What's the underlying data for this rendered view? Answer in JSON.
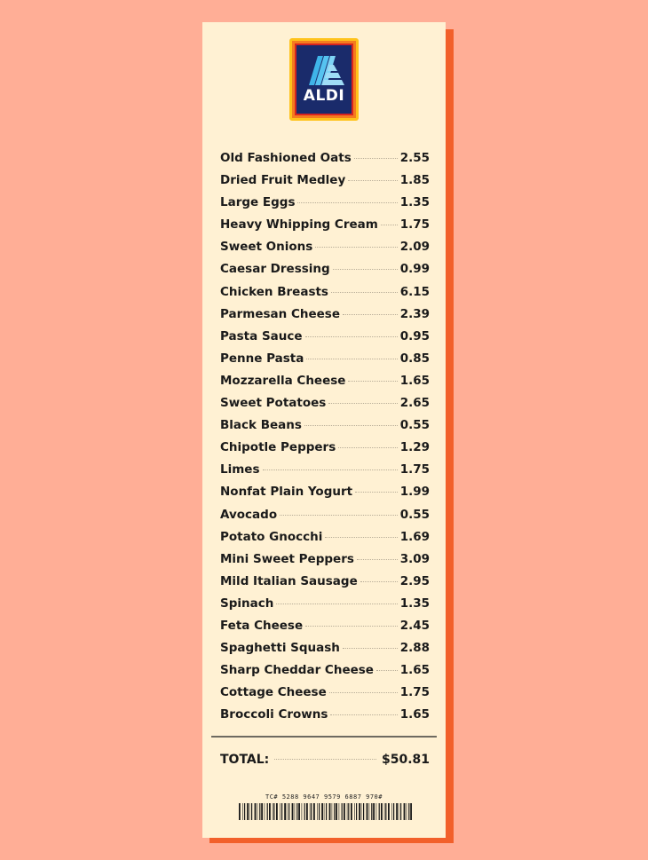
{
  "store": {
    "logo_text": "ALDI"
  },
  "items": [
    {
      "name": "Old Fashioned Oats",
      "price": "2.55"
    },
    {
      "name": "Dried Fruit Medley",
      "price": "1.85"
    },
    {
      "name": "Large Eggs",
      "price": "1.35"
    },
    {
      "name": "Heavy Whipping Cream",
      "price": "1.75"
    },
    {
      "name": "Sweet Onions",
      "price": "2.09"
    },
    {
      "name": "Caesar Dressing",
      "price": "0.99"
    },
    {
      "name": "Chicken Breasts",
      "price": "6.15"
    },
    {
      "name": "Parmesan Cheese",
      "price": "2.39"
    },
    {
      "name": "Pasta Sauce",
      "price": "0.95"
    },
    {
      "name": "Penne Pasta",
      "price": "0.85"
    },
    {
      "name": "Mozzarella Cheese",
      "price": "1.65"
    },
    {
      "name": "Sweet Potatoes",
      "price": "2.65"
    },
    {
      "name": "Black Beans",
      "price": "0.55"
    },
    {
      "name": "Chipotle Peppers",
      "price": "1.29"
    },
    {
      "name": "Limes",
      "price": "1.75"
    },
    {
      "name": "Nonfat Plain Yogurt",
      "price": "1.99"
    },
    {
      "name": "Avocado",
      "price": "0.55"
    },
    {
      "name": "Potato Gnocchi",
      "price": "1.69"
    },
    {
      "name": "Mini Sweet Peppers",
      "price": "3.09"
    },
    {
      "name": "Mild Italian Sausage",
      "price": "2.95"
    },
    {
      "name": "Spinach",
      "price": "1.35"
    },
    {
      "name": "Feta Cheese",
      "price": "2.45"
    },
    {
      "name": "Spaghetti Squash",
      "price": "2.88"
    },
    {
      "name": "Sharp Cheddar Cheese",
      "price": "1.65"
    },
    {
      "name": "Cottage Cheese",
      "price": "1.75"
    },
    {
      "name": "Broccoli Crowns",
      "price": "1.65"
    }
  ],
  "total": {
    "label": "TOTAL:",
    "value": "$50.81"
  },
  "transaction": {
    "code": "TC# 5288 9647 9579 6887 970#"
  },
  "colors": {
    "background": "#ffae96",
    "paper": "#fff1d3",
    "shadow": "#f2602a",
    "logo_blue": "#1a2b6b"
  }
}
